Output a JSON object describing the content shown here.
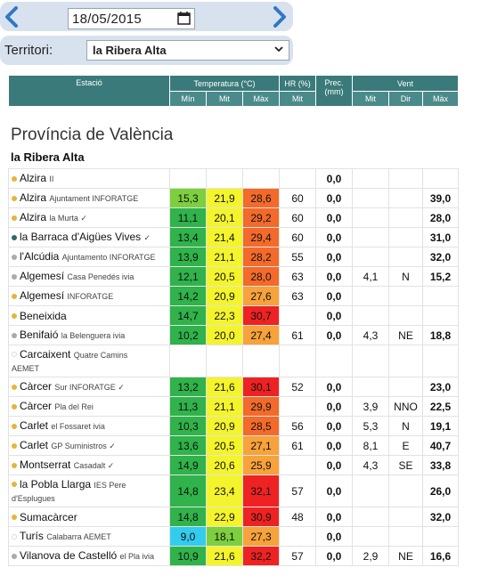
{
  "date": "18/05/2015",
  "territory": {
    "label": "Territori:",
    "selected": "la Ribera Alta"
  },
  "header": {
    "estacio": "Estació",
    "temperatura": "Temperatura (°C)",
    "hr": "HR (%)",
    "prec": "Prec. (mm)",
    "vent": "Vent",
    "sub": [
      "Mín",
      "Mit",
      "Màx",
      "Mit",
      "Mit",
      "Dir",
      "Màx"
    ]
  },
  "province": "Província de València",
  "region": "la Ribera Alta",
  "colors": {
    "green_dark": "#2fb34a",
    "green": "#7ccf3e",
    "yellow": "#f4f42c",
    "orange": "#f7a23a",
    "orange_dark": "#f36a2a",
    "red": "#ee2222",
    "cyan": "#33ccee",
    "header": "#3b7a7a",
    "dot_yellow": "#e8b33a",
    "dot_grey": "#aaaaaa",
    "dot_teal": "#2a6a6a"
  },
  "rows": [
    {
      "name": "Alzira",
      "sub": "II",
      "dot": "yellow",
      "min": "",
      "mit": "",
      "max": "",
      "hr": "",
      "prec": "0,0",
      "vmit": "",
      "dir": "",
      "vmax": ""
    },
    {
      "name": "Alzira",
      "sub": "Ajuntament INFORATGE",
      "dot": "yellow",
      "min": "15,3",
      "mit": "21,9",
      "max": "28,6",
      "hr": "60",
      "prec": "0,0",
      "vmit": "",
      "dir": "",
      "vmax": "39,0"
    },
    {
      "name": "Alzira",
      "sub": "la Murta ✓",
      "dot": "yellow",
      "min": "11,1",
      "mit": "20,1",
      "max": "29,2",
      "hr": "60",
      "prec": "0,0",
      "vmit": "",
      "dir": "",
      "vmax": "28,0"
    },
    {
      "name": "la Barraca d'Aigües Vives",
      "sub": "✓",
      "dot": "teal",
      "min": "13,4",
      "mit": "21,4",
      "max": "29,4",
      "hr": "60",
      "prec": "0,0",
      "vmit": "",
      "dir": "",
      "vmax": "31,0"
    },
    {
      "name": "l'Alcúdia",
      "sub": "Ajuntamento INFORATGE",
      "dot": "grey",
      "min": "13,9",
      "mit": "21,1",
      "max": "28,2",
      "hr": "55",
      "prec": "0,0",
      "vmit": "",
      "dir": "",
      "vmax": "32,0"
    },
    {
      "name": "Algemesí",
      "sub": "Casa Penedés ivia",
      "dot": "grey",
      "min": "12,1",
      "mit": "20,5",
      "max": "28,0",
      "hr": "63",
      "prec": "0,0",
      "vmit": "4,1",
      "dir": "N",
      "vmax": "15,2"
    },
    {
      "name": "Algemesí",
      "sub": "INFORATGE",
      "dot": "yellow",
      "min": "14,2",
      "mit": "20,9",
      "max": "27,6",
      "hr": "63",
      "prec": "0,0",
      "vmit": "",
      "dir": "",
      "vmax": ""
    },
    {
      "name": "Beneixida",
      "sub": "",
      "dot": "yellow",
      "min": "14,7",
      "mit": "22,3",
      "max": "30,7",
      "hr": "",
      "prec": "0,0",
      "vmit": "",
      "dir": "",
      "vmax": ""
    },
    {
      "name": "Benifaió",
      "sub": "la Belenguera ivia",
      "dot": "grey",
      "min": "10,2",
      "mit": "20,0",
      "max": "27,4",
      "hr": "61",
      "prec": "0,0",
      "vmit": "4,3",
      "dir": "NE",
      "vmax": "18,8"
    },
    {
      "name": "Carcaixent",
      "sub": "Quatre Camins",
      "sub2": "AEMET",
      "dot": "none",
      "min": "",
      "mit": "",
      "max": "",
      "hr": "",
      "prec": "",
      "vmit": "",
      "dir": "",
      "vmax": ""
    },
    {
      "name": "Càrcer",
      "sub": "Sur INFORATGE ✓",
      "dot": "yellow",
      "min": "13,2",
      "mit": "21,6",
      "max": "30,1",
      "hr": "52",
      "prec": "0,0",
      "vmit": "",
      "dir": "",
      "vmax": "23,0"
    },
    {
      "name": "Càrcer",
      "sub": "Pla del Rei",
      "dot": "yellow",
      "min": "11,3",
      "mit": "21,1",
      "max": "29,9",
      "hr": "",
      "prec": "0,0",
      "vmit": "3,9",
      "dir": "NNO",
      "vmax": "22,5"
    },
    {
      "name": "Carlet",
      "sub": "el Fossaret ivia",
      "dot": "yellow",
      "min": "10,3",
      "mit": "20,9",
      "max": "28,5",
      "hr": "56",
      "prec": "0,0",
      "vmit": "5,3",
      "dir": "N",
      "vmax": "19,1"
    },
    {
      "name": "Carlet",
      "sub": "GP Suministros ✓",
      "dot": "yellow",
      "min": "13,6",
      "mit": "20,5",
      "max": "27,1",
      "hr": "61",
      "prec": "0,0",
      "vmit": "8,1",
      "dir": "E",
      "vmax": "40,7"
    },
    {
      "name": "Montserrat",
      "sub": "Casadalt ✓",
      "dot": "yellow",
      "min": "14,9",
      "mit": "20,6",
      "max": "25,9",
      "hr": "",
      "prec": "0,0",
      "vmit": "4,3",
      "dir": "SE",
      "vmax": "33,8"
    },
    {
      "name": "la Pobla Llarga",
      "sub": "IES Pere",
      "sub2": "d'Esplugues",
      "dot": "yellow",
      "min": "14,8",
      "mit": "23,4",
      "max": "32,1",
      "hr": "57",
      "prec": "0,0",
      "vmit": "",
      "dir": "",
      "vmax": "26,0"
    },
    {
      "name": "Sumacàrcer",
      "sub": "",
      "dot": "yellow",
      "min": "14,8",
      "mit": "22,9",
      "max": "30,9",
      "hr": "48",
      "prec": "0,0",
      "vmit": "",
      "dir": "",
      "vmax": "32,0"
    },
    {
      "name": "Turís",
      "sub": "Calabarra AEMET",
      "dot": "none",
      "min": "9,0",
      "mit": "18,1",
      "max": "27,3",
      "hr": "",
      "prec": "0,0",
      "vmit": "",
      "dir": "",
      "vmax": ""
    },
    {
      "name": "Vilanova de Castelló",
      "sub": "el Pla ivia",
      "dot": "grey",
      "min": "10,9",
      "mit": "21,6",
      "max": "32,2",
      "hr": "57",
      "prec": "0,0",
      "vmit": "2,9",
      "dir": "NE",
      "vmax": "16,6"
    }
  ]
}
